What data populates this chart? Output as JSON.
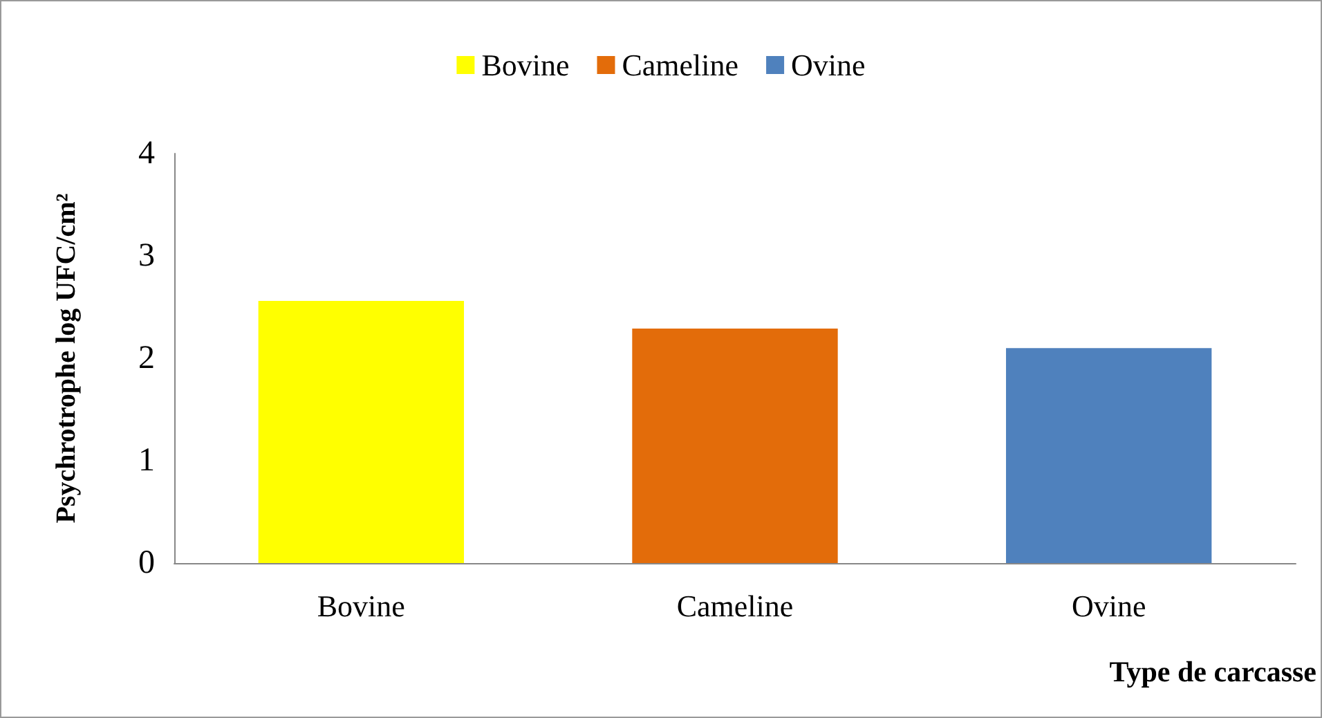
{
  "chart_data": {
    "type": "bar",
    "categories": [
      "Bovine",
      "Cameline",
      "Ovine"
    ],
    "series": [
      {
        "name": "Bovine",
        "color": "#ffff00",
        "values": [
          2.56,
          null,
          null
        ]
      },
      {
        "name": "Cameline",
        "color": "#e36c0a",
        "values": [
          null,
          2.29,
          null
        ]
      },
      {
        "name": "Ovine",
        "color": "#4f81bd",
        "values": [
          null,
          null,
          2.1
        ]
      }
    ],
    "xlabel": "Type de carcasse",
    "ylabel": "Psychrotrophe log UFC/cm²",
    "ylim": [
      0,
      4
    ],
    "yticks": [
      0,
      1,
      2,
      3,
      4
    ],
    "grid": false,
    "legend": "top"
  }
}
